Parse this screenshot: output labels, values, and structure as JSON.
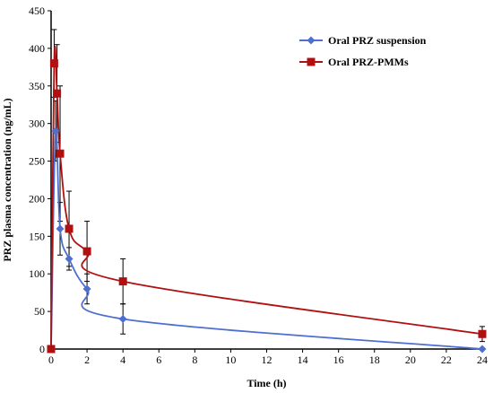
{
  "chart_data": {
    "type": "line",
    "xlabel": "Time (h)",
    "ylabel": "PRZ plasma concentration (ng/mL)",
    "xlim": [
      0,
      24
    ],
    "ylim": [
      0,
      450
    ],
    "x_ticks": [
      "0",
      "2",
      "4",
      "6",
      "8",
      "10",
      "12",
      "14",
      "16",
      "18",
      "20",
      "22",
      "24"
    ],
    "y_ticks": [
      "0",
      "50",
      "100",
      "150",
      "200",
      "250",
      "300",
      "350",
      "400",
      "450"
    ],
    "grid": false,
    "legend_position": "top-right",
    "series": [
      {
        "name": "Oral PRZ suspension",
        "color": "#4F6FD0",
        "marker": "diamond",
        "x": [
          0,
          0.25,
          0.5,
          1,
          2,
          4,
          24
        ],
        "y": [
          0,
          290,
          160,
          120,
          80,
          40,
          0
        ],
        "err": [
          0,
          40,
          35,
          15,
          20,
          20,
          0
        ]
      },
      {
        "name": "Oral PRZ-PMMs",
        "color": "#B01010",
        "marker": "square",
        "x": [
          0,
          0.17,
          0.33,
          0.5,
          1,
          2,
          4,
          24
        ],
        "y": [
          0,
          380,
          340,
          260,
          160,
          130,
          90,
          20
        ],
        "err": [
          0,
          45,
          65,
          90,
          50,
          40,
          30,
          10
        ]
      }
    ]
  }
}
